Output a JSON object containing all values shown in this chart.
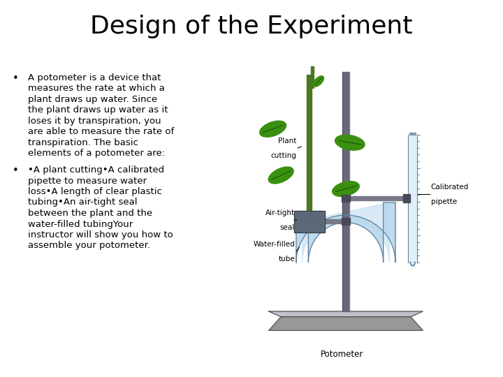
{
  "title": "Design of the Experiment",
  "title_fontsize": 26,
  "background_color": "#ffffff",
  "text_color": "#000000",
  "bullet1_lines": [
    "A potometer is a device that",
    "measures the rate at which a",
    "plant draws up water. Since",
    "the plant draws up water as it",
    "loses it by transpiration, you",
    "are able to measure the rate of",
    "transpiration. The basic",
    "elements of a potometer are:"
  ],
  "bullet2_lines": [
    "•A plant cutting•A calibrated",
    "pipette to measure water",
    "loss•A length of clear plastic",
    "tubing•An air-tight seal",
    "between the plant and the",
    "water-filled tubingYour",
    "instructor will show you how to",
    "assemble your potometer."
  ],
  "text_fontsize": 9.5,
  "label_fontsize": 7.5,
  "leaf_color": "#3a9010",
  "leaf_dark": "#1a6000",
  "stem_color": "#4a7820",
  "tube_color": "#b8d8ec",
  "tube_edge": "#6080a0",
  "water_color": "#c0dcf0",
  "metal_color": "#787888",
  "metal_light": "#a8aab8",
  "clamp_color": "#484858",
  "base_color": "#989898",
  "base_light": "#c0c0c8",
  "pipette_color": "#e0eff8",
  "stand_rod_color": "#686878"
}
